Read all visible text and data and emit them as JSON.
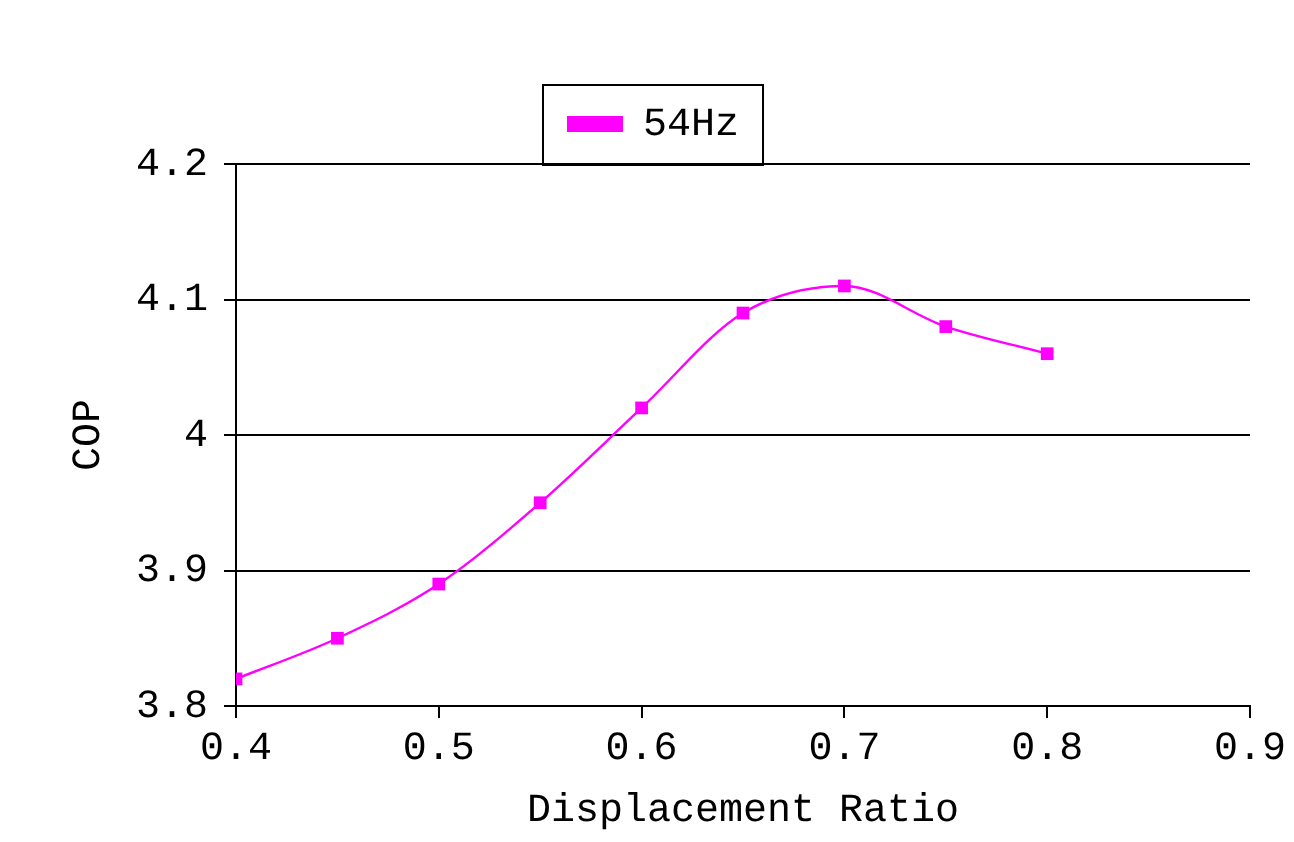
{
  "chart_data": {
    "type": "line",
    "xlabel": "Displacement Ratio",
    "ylabel": "COP",
    "x": [
      0.4,
      0.45,
      0.5,
      0.55,
      0.6,
      0.65,
      0.7,
      0.75,
      0.8
    ],
    "series": [
      {
        "name": "54Hz",
        "color": "#ff00ff",
        "values": [
          3.82,
          3.85,
          3.89,
          3.95,
          4.02,
          4.09,
          4.11,
          4.08,
          4.06
        ]
      }
    ],
    "xlim": [
      0.4,
      0.9
    ],
    "xticks": [
      0.4,
      0.5,
      0.6,
      0.7,
      0.8,
      0.9
    ],
    "ylim": [
      3.8,
      4.2
    ],
    "yticks": [
      3.8,
      3.9,
      4,
      4.1,
      4.2
    ],
    "grid": "y",
    "legend": "top",
    "marker": "square",
    "line_style": "solid"
  }
}
